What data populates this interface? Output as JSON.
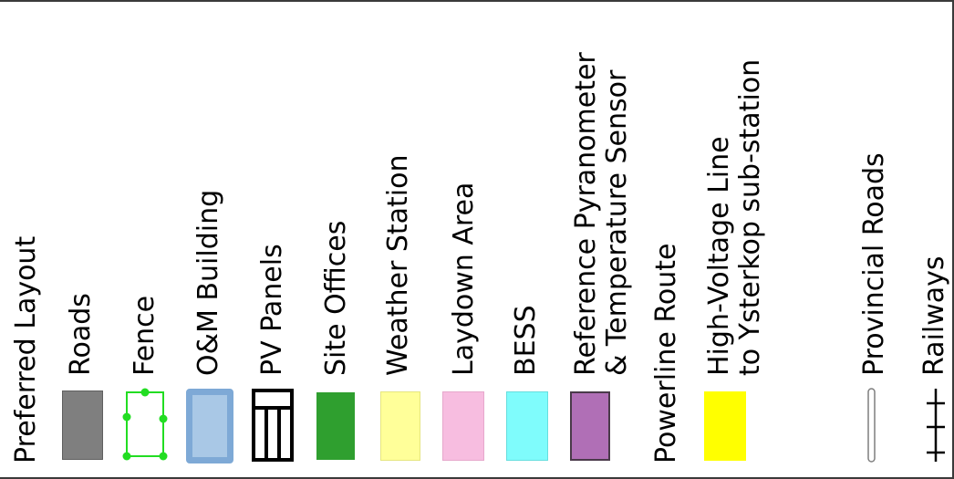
{
  "legend": {
    "title": "Preferred Layout",
    "items": [
      {
        "key": "roads",
        "label": "Roads",
        "fill": "#7f7f7f",
        "stroke": "#5f5f5f"
      },
      {
        "key": "fence",
        "label": "Fence",
        "stroke": "#22dd22",
        "icon": "fence-symbol"
      },
      {
        "key": "om-building",
        "label": "O&M Building",
        "fill": "#9dbddb",
        "stroke": "#6f9fcf"
      },
      {
        "key": "pv-panels",
        "label": "PV Panels",
        "stroke": "#000000",
        "icon": "pv-panel-symbol"
      },
      {
        "key": "site-offices",
        "label": "Site Offices",
        "fill": "#2f9f2f",
        "stroke": "#2f9f2f"
      },
      {
        "key": "weather-station",
        "label": "Weather Station",
        "fill": "#ffff99",
        "stroke": "#e6e680"
      },
      {
        "key": "laydown-area",
        "label": "Laydown Area",
        "fill": "#f7bde0",
        "stroke": "#e6a8cc"
      },
      {
        "key": "bess",
        "label": "BESS",
        "fill": "#7ffcfc",
        "stroke": "#66dede"
      },
      {
        "key": "reference-pyranometer",
        "label": "Reference Pyranometer",
        "label2": "& Temperature Sensor",
        "fill": "#b06fb6",
        "stroke": "#4a3a4a"
      },
      {
        "key": "powerline-route",
        "label": "Powerline Route"
      },
      {
        "key": "hv-line",
        "label": "High-Voltage Line",
        "label2": "to Ysterkop sub-station",
        "fill": "#ffff00",
        "stroke": "#ffff00"
      },
      {
        "key": "provincial-roads",
        "label": "Provincial Roads",
        "stroke": "#7f7f7f",
        "icon": "provincial-road-symbol"
      },
      {
        "key": "railways",
        "label": "Railways",
        "stroke": "#000000",
        "icon": "railway-symbol"
      }
    ]
  }
}
